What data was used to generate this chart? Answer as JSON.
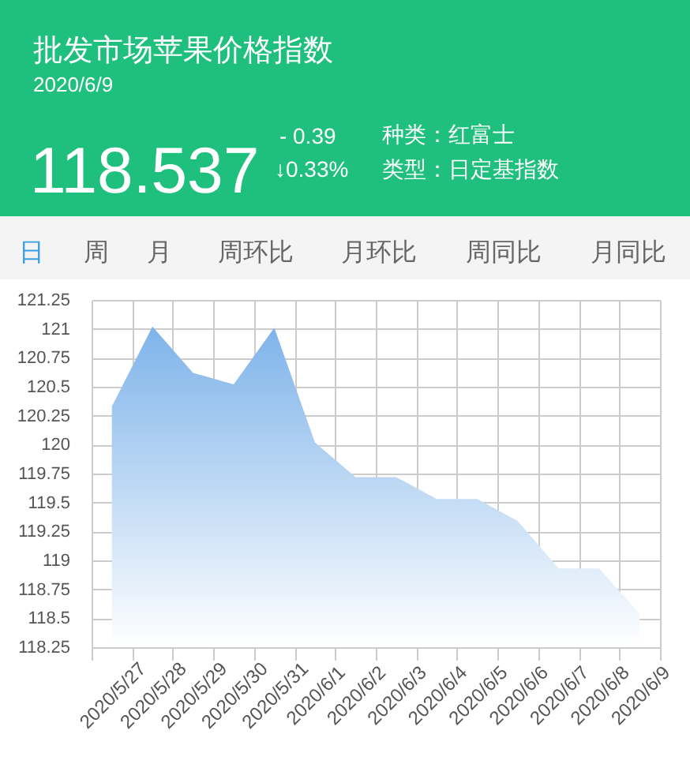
{
  "chart_data": {
    "type": "area",
    "title": "批发市场苹果价格指数",
    "subtitle": "2020/6/9",
    "annotations": [
      "118.537",
      "- 0.39",
      "↓0.33%",
      "种类：红富士",
      "类型：日定基指数",
      "日",
      "周",
      "月",
      "周环比",
      "月环比",
      "周同比",
      "月同比"
    ],
    "categories": [
      "2020/5/27",
      "2020/5/28",
      "2020/5/29",
      "2020/5/30",
      "2020/5/31",
      "2020/6/1",
      "2020/6/2",
      "2020/6/3",
      "2020/6/4",
      "2020/6/5",
      "2020/6/6",
      "2020/6/7",
      "2020/6/8",
      "2020/6/9"
    ],
    "series": [
      {
        "color": "#7eb3ea",
        "values": [
          120.33,
          121.02,
          120.62,
          120.52,
          121.01,
          120.02,
          119.72,
          119.72,
          119.53,
          119.53,
          119.34,
          118.93,
          118.93,
          118.54
        ]
      }
    ],
    "ylim": [
      118.25,
      121.25
    ],
    "yticks": [
      118.25,
      118.5,
      118.75,
      119,
      119.25,
      119.5,
      119.75,
      120,
      120.25,
      120.5,
      120.75,
      121,
      121.25
    ],
    "grid": true
  }
}
